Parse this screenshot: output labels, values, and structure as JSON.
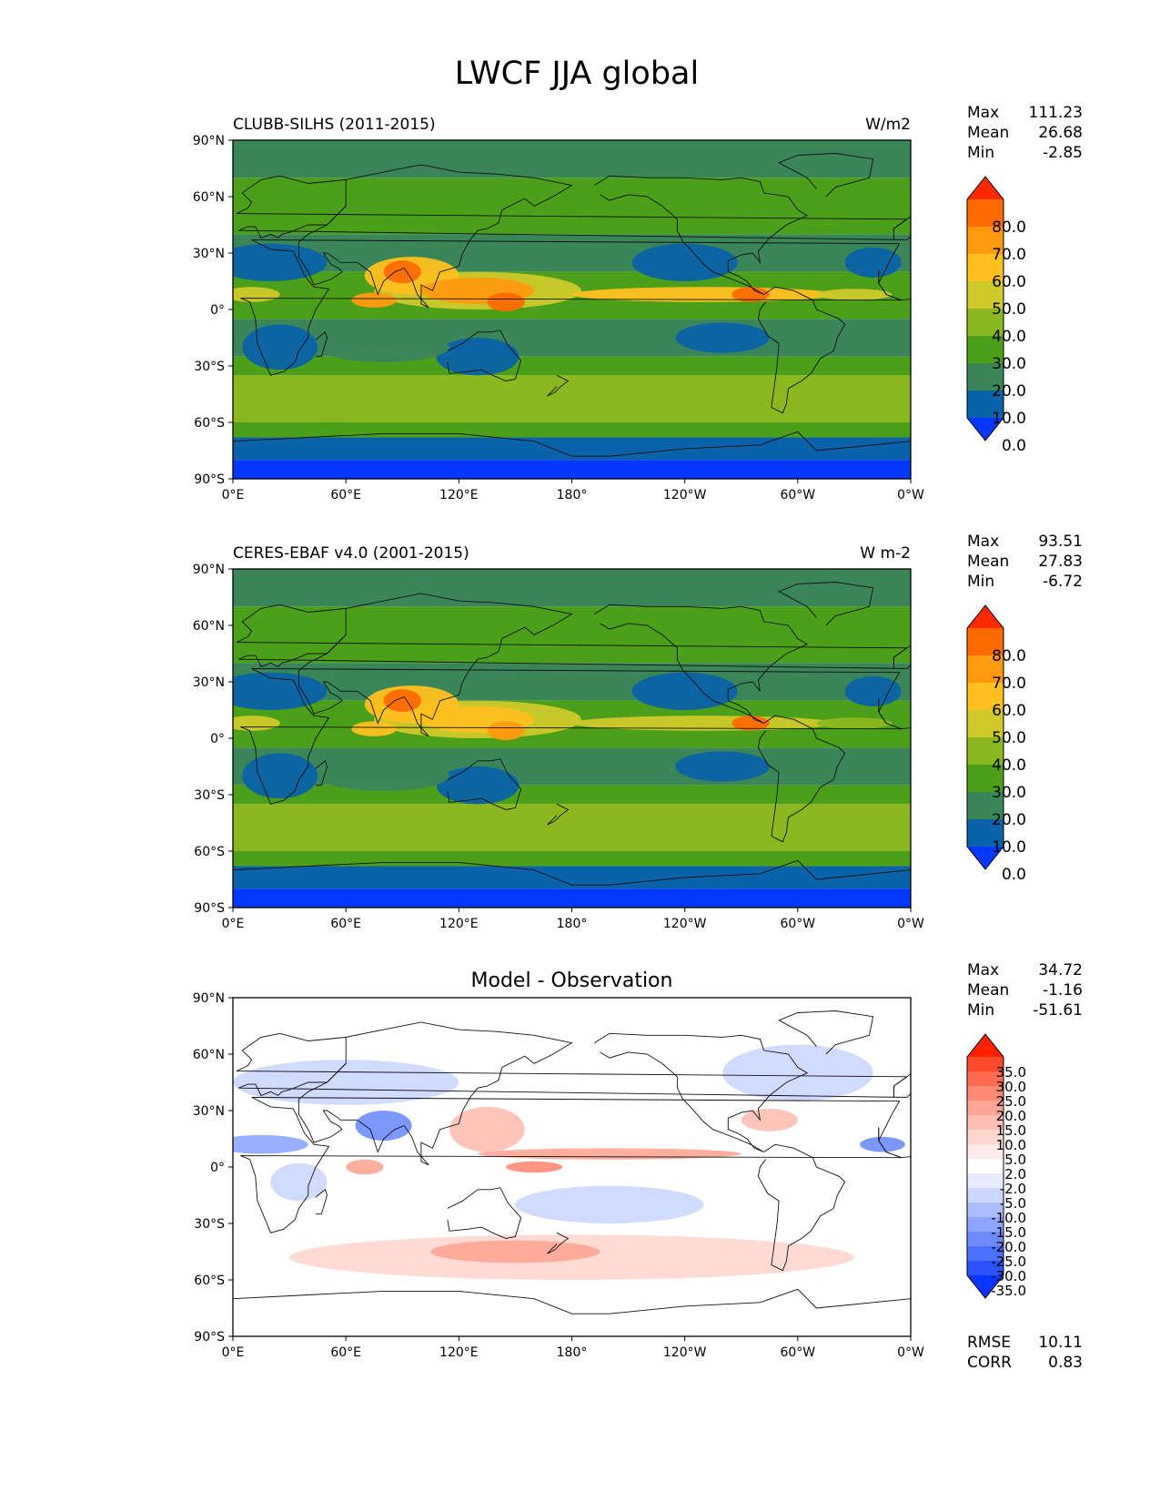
{
  "title": "LWCF JJA global",
  "lat_ticks": [
    "90°N",
    "60°N",
    "30°N",
    "0°",
    "30°S",
    "60°S",
    "90°S"
  ],
  "lon_ticks": [
    "0°E",
    "60°E",
    "120°E",
    "180°",
    "120°W",
    "60°W",
    "0°W"
  ],
  "stat_labels": {
    "max": "Max",
    "mean": "Mean",
    "min": "Min",
    "rmse": "RMSE",
    "corr": "CORR"
  },
  "panels": [
    {
      "left_title": "CLUBB-SILHS (2011-2015)",
      "center_title": "",
      "units": "W/m2",
      "stats": {
        "max": "111.23",
        "mean": "26.68",
        "min": "-2.85"
      },
      "colorbar": {
        "labels": [
          "80.0",
          "70.0",
          "60.0",
          "50.0",
          "40.0",
          "30.0",
          "20.0",
          "10.0",
          "0.0"
        ],
        "colors": [
          "#ff2a00",
          "#ff6a00",
          "#ff9a10",
          "#ffc020",
          "#cfc92a",
          "#8bb81e",
          "#4c9f18",
          "#3a8658",
          "#0a62a8",
          "#0538ff"
        ]
      }
    },
    {
      "left_title": "CERES-EBAF v4.0 (2001-2015)",
      "center_title": "",
      "units": "W m-2",
      "stats": {
        "max": "93.51",
        "mean": "27.83",
        "min": "-6.72"
      },
      "colorbar": {
        "labels": [
          "80.0",
          "70.0",
          "60.0",
          "50.0",
          "40.0",
          "30.0",
          "20.0",
          "10.0",
          "0.0"
        ],
        "colors": [
          "#ff2a00",
          "#ff6a00",
          "#ff9a10",
          "#ffc020",
          "#cfc92a",
          "#8bb81e",
          "#4c9f18",
          "#3a8658",
          "#0a62a8",
          "#0538ff"
        ]
      }
    },
    {
      "left_title": "",
      "center_title": "Model - Observation",
      "units": "",
      "stats": {
        "max": "34.72",
        "mean": "-1.16",
        "min": "-51.61",
        "rmse": "10.11",
        "corr": "0.83"
      },
      "colorbar": {
        "labels": [
          "35.0",
          "30.0",
          "25.0",
          "20.0",
          "15.0",
          "10.0",
          "5.0",
          "2.0",
          "-2.0",
          "-5.0",
          "-10.0",
          "-15.0",
          "-20.0",
          "-25.0",
          "-30.0",
          "-35.0"
        ],
        "colors": [
          "#ff2200",
          "#ff4a2e",
          "#ff6b52",
          "#ff8a76",
          "#ffa596",
          "#ffbfb4",
          "#ffd7cf",
          "#ffecea",
          "#ffffff",
          "#e8ecff",
          "#ccd6ff",
          "#adbeff",
          "#8ea6ff",
          "#6e8cff",
          "#4d70ff",
          "#2a52ff",
          "#0a34ff"
        ]
      }
    }
  ],
  "chart_data": [
    {
      "type": "heatmap",
      "title": "CLUBB-SILHS (2011-2015)",
      "units": "W/m2",
      "variable": "LWCF",
      "season": "JJA",
      "xlabel": "",
      "ylabel": "",
      "x_ticks": [
        "0°E",
        "60°E",
        "120°E",
        "180°",
        "120°W",
        "60°W",
        "0°W"
      ],
      "y_ticks": [
        "90°N",
        "60°N",
        "30°N",
        "0°",
        "30°S",
        "60°S",
        "90°S"
      ],
      "xlim": [
        0,
        360
      ],
      "ylim": [
        -90,
        90
      ],
      "contour_levels": [
        0,
        10,
        20,
        30,
        40,
        50,
        60,
        70,
        80
      ],
      "max": 111.23,
      "mean": 26.68,
      "min": -2.85
    },
    {
      "type": "heatmap",
      "title": "CERES-EBAF v4.0 (2001-2015)",
      "units": "W m-2",
      "variable": "LWCF",
      "season": "JJA",
      "xlabel": "",
      "ylabel": "",
      "x_ticks": [
        "0°E",
        "60°E",
        "120°E",
        "180°",
        "120°W",
        "60°W",
        "0°W"
      ],
      "y_ticks": [
        "90°N",
        "60°N",
        "30°N",
        "0°",
        "30°S",
        "60°S",
        "90°S"
      ],
      "xlim": [
        0,
        360
      ],
      "ylim": [
        -90,
        90
      ],
      "contour_levels": [
        0,
        10,
        20,
        30,
        40,
        50,
        60,
        70,
        80
      ],
      "max": 93.51,
      "mean": 27.83,
      "min": -6.72
    },
    {
      "type": "heatmap",
      "title": "Model - Observation",
      "units": "",
      "variable": "LWCF",
      "season": "JJA",
      "xlabel": "",
      "ylabel": "",
      "x_ticks": [
        "0°E",
        "60°E",
        "120°E",
        "180°",
        "120°W",
        "60°W",
        "0°W"
      ],
      "y_ticks": [
        "90°N",
        "60°N",
        "30°N",
        "0°",
        "30°S",
        "60°S",
        "90°S"
      ],
      "xlim": [
        0,
        360
      ],
      "ylim": [
        -90,
        90
      ],
      "contour_levels": [
        -35,
        -30,
        -25,
        -20,
        -15,
        -10,
        -5,
        -2,
        2,
        5,
        10,
        15,
        20,
        25,
        30,
        35
      ],
      "max": 34.72,
      "mean": -1.16,
      "min": -51.61,
      "rmse": 10.11,
      "corr": 0.83
    }
  ]
}
